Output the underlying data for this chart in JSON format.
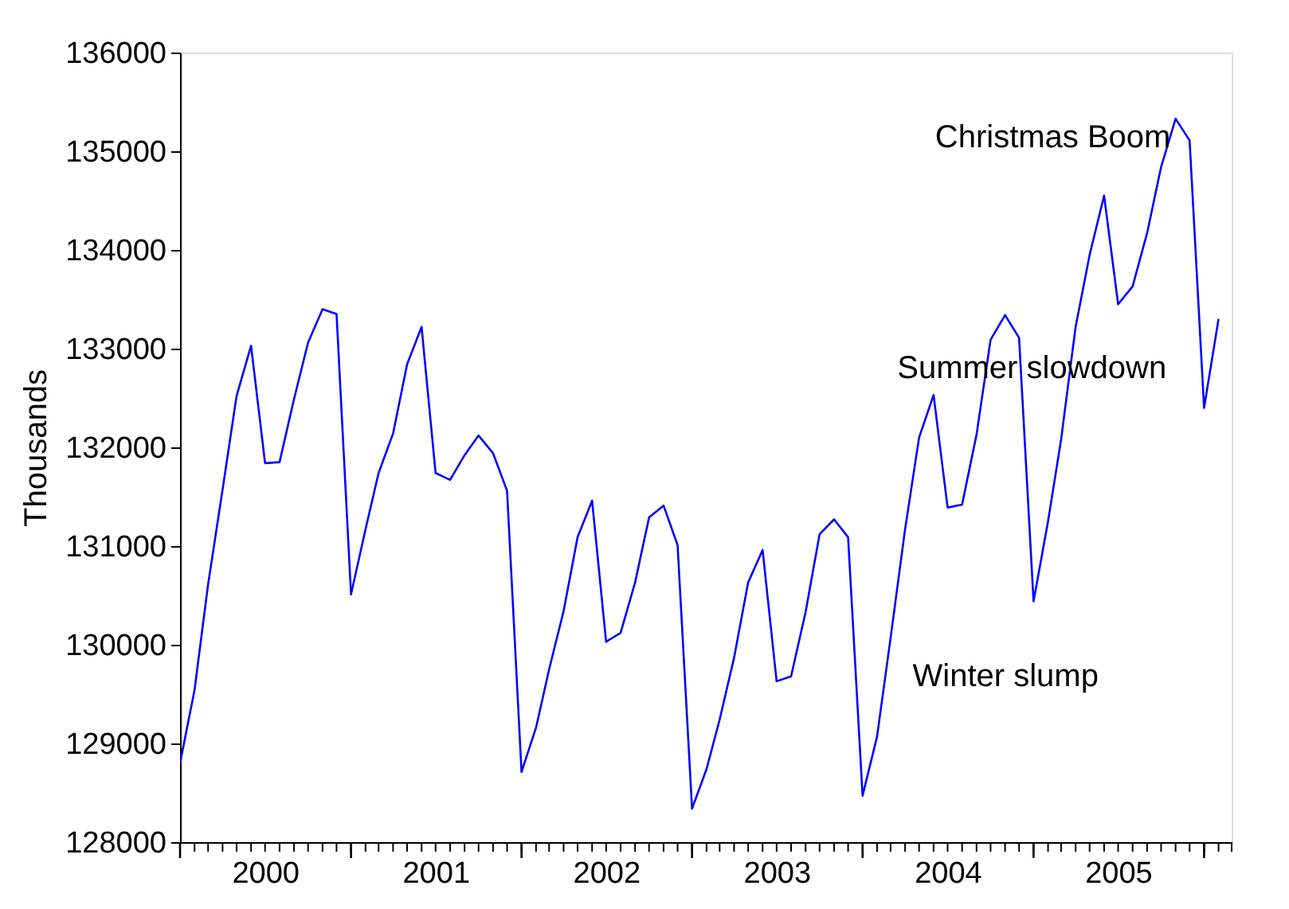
{
  "chart_data": {
    "type": "line",
    "ylabel": "Thousands",
    "x": [
      "2000-01",
      "2000-02",
      "2000-03",
      "2000-04",
      "2000-05",
      "2000-06",
      "2000-07",
      "2000-08",
      "2000-09",
      "2000-10",
      "2000-11",
      "2000-12",
      "2001-01",
      "2001-02",
      "2001-03",
      "2001-04",
      "2001-05",
      "2001-06",
      "2001-07",
      "2001-08",
      "2001-09",
      "2001-10",
      "2001-11",
      "2001-12",
      "2002-01",
      "2002-02",
      "2002-03",
      "2002-04",
      "2002-05",
      "2002-06",
      "2002-07",
      "2002-08",
      "2002-09",
      "2002-10",
      "2002-11",
      "2002-12",
      "2003-01",
      "2003-02",
      "2003-03",
      "2003-04",
      "2003-05",
      "2003-06",
      "2003-07",
      "2003-08",
      "2003-09",
      "2003-10",
      "2003-11",
      "2003-12",
      "2004-01",
      "2004-02",
      "2004-03",
      "2004-04",
      "2004-05",
      "2004-06",
      "2004-07",
      "2004-08",
      "2004-09",
      "2004-10",
      "2004-11",
      "2004-12",
      "2005-01",
      "2005-02",
      "2005-03",
      "2005-04",
      "2005-05",
      "2005-06",
      "2005-07",
      "2005-08",
      "2005-09",
      "2005-10",
      "2005-11",
      "2005-12",
      "2006-01",
      "2006-02"
    ],
    "series": [
      {
        "color": "#0000ff",
        "values": [
          128800,
          129540,
          130610,
          131570,
          132520,
          133030,
          131840,
          131850,
          132490,
          133060,
          133400,
          133350,
          130510,
          131170,
          131740,
          132140,
          132840,
          133220,
          131740,
          131670,
          131920,
          132120,
          131940,
          131560,
          128710,
          129160,
          129750,
          130340,
          131090,
          131460,
          130030,
          130120,
          130630,
          131290,
          131410,
          131010,
          128340,
          128740,
          129240,
          129870,
          130630,
          130960,
          129630,
          129680,
          130330,
          131120,
          131270,
          131090,
          128470,
          129070,
          130070,
          131170,
          132100,
          132530,
          131390,
          131420,
          132130,
          133090,
          133340,
          133110,
          130440,
          131250,
          132080,
          133220,
          133950,
          134550,
          133450,
          133630,
          134170,
          134840,
          135330,
          135110,
          132400,
          133300
        ]
      }
    ],
    "xlim": [
      "2000-01",
      "2006-03"
    ],
    "xticks": [
      {
        "value": "2000-07",
        "label": "2000"
      },
      {
        "value": "2001-07",
        "label": "2001"
      },
      {
        "value": "2002-07",
        "label": "2002"
      },
      {
        "value": "2003-07",
        "label": "2003"
      },
      {
        "value": "2004-07",
        "label": "2004"
      },
      {
        "value": "2005-07",
        "label": "2005"
      }
    ],
    "ylim": [
      128000,
      136000
    ],
    "yticks": [
      128000,
      129000,
      130000,
      131000,
      132000,
      133000,
      134000,
      135000,
      136000
    ],
    "annotations": [
      "Christmas Boom",
      "Summer slowdown",
      "Winter slump"
    ],
    "grid": false,
    "marker": "none",
    "line_style": "solid"
  }
}
